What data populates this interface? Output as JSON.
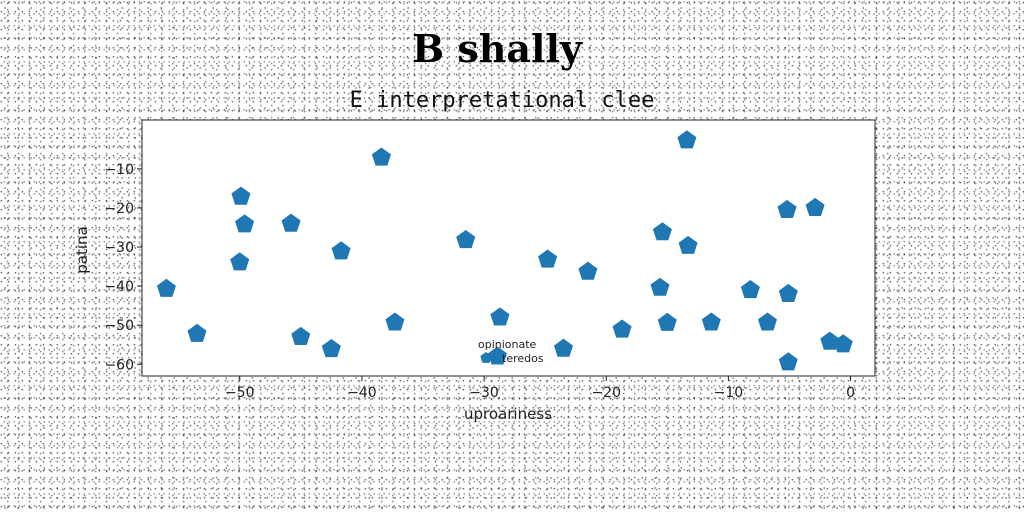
{
  "chart_data": {
    "type": "scatter",
    "title": "B shally",
    "subtitle": "E interpretational clee",
    "xlabel": "uproariness",
    "ylabel": "patina",
    "xlim": [
      -58,
      2
    ],
    "ylim": [
      -63,
      2.5
    ],
    "xticks": [
      -50,
      -40,
      -30,
      -20,
      -10,
      0
    ],
    "yticks": [
      -10,
      -20,
      -30,
      -40,
      -50,
      -60
    ],
    "grid": false,
    "legend": {
      "title": "opinionate",
      "placement": "lower-center"
    },
    "marker": "pentagon",
    "color": "#1f77b4",
    "series": [
      {
        "name": "teredos",
        "points": [
          {
            "x": -56.0,
            "y": -40.7
          },
          {
            "x": -53.5,
            "y": -52.2
          },
          {
            "x": -49.9,
            "y": -17.1
          },
          {
            "x": -49.6,
            "y": -24.2
          },
          {
            "x": -50.0,
            "y": -33.9
          },
          {
            "x": -45.8,
            "y": -24.0
          },
          {
            "x": -45.0,
            "y": -53.0
          },
          {
            "x": -42.5,
            "y": -56.1
          },
          {
            "x": -41.7,
            "y": -31.1
          },
          {
            "x": -38.4,
            "y": -7.1
          },
          {
            "x": -37.3,
            "y": -49.3
          },
          {
            "x": -31.5,
            "y": -28.2
          },
          {
            "x": -28.7,
            "y": -48.0
          },
          {
            "x": -28.9,
            "y": -58.0
          },
          {
            "x": -24.8,
            "y": -33.2
          },
          {
            "x": -23.5,
            "y": -56.0
          },
          {
            "x": -21.5,
            "y": -36.3
          },
          {
            "x": -18.7,
            "y": -51.1
          },
          {
            "x": -15.6,
            "y": -40.4
          },
          {
            "x": -15.4,
            "y": -26.2
          },
          {
            "x": -15.0,
            "y": -49.4
          },
          {
            "x": -13.3,
            "y": -29.7
          },
          {
            "x": -13.4,
            "y": -2.7
          },
          {
            "x": -11.4,
            "y": -49.3
          },
          {
            "x": -8.2,
            "y": -41.0
          },
          {
            "x": -6.8,
            "y": -49.3
          },
          {
            "x": -5.2,
            "y": -20.5
          },
          {
            "x": -5.1,
            "y": -42.0
          },
          {
            "x": -5.1,
            "y": -59.5
          },
          {
            "x": -2.9,
            "y": -20.0
          },
          {
            "x": -1.7,
            "y": -54.2
          },
          {
            "x": -0.6,
            "y": -54.9
          }
        ]
      }
    ]
  }
}
